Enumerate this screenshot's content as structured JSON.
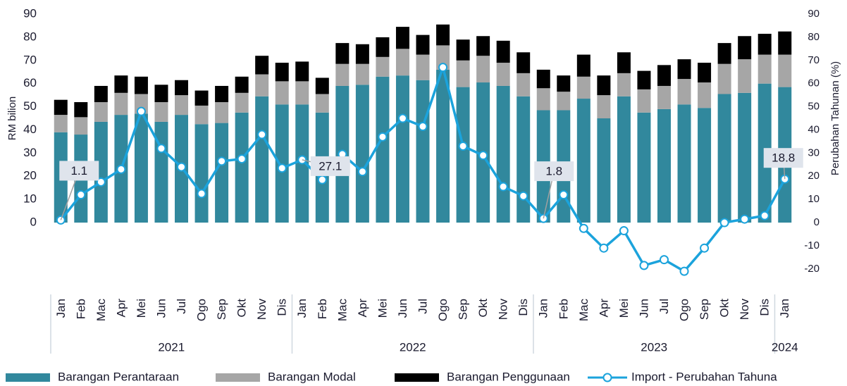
{
  "chart_data": {
    "type": "bar",
    "categories": [
      "Jan",
      "Feb",
      "Mac",
      "Apr",
      "Mei",
      "Jun",
      "Jul",
      "Ogo",
      "Sep",
      "Okt",
      "Nov",
      "Dis",
      "Jan",
      "Feb",
      "Mac",
      "Apr",
      "Mei",
      "Jun",
      "Jul",
      "Ogo",
      "Sep",
      "Okt",
      "Nov",
      "Dis",
      "Jan",
      "Feb",
      "Mac",
      "Apr",
      "Mei",
      "Jun",
      "Jul",
      "Ogo",
      "Sep",
      "Okt",
      "Nov",
      "Dis",
      "Jan"
    ],
    "groups": [
      {
        "label": "2021",
        "count": 12
      },
      {
        "label": "2022",
        "count": 12
      },
      {
        "label": "2023",
        "count": 12
      },
      {
        "label": "2024",
        "count": 1
      }
    ],
    "ylabel": "RM bilion",
    "y2label": "Perubahan Tahunan (%)",
    "ylim": [
      -30,
      90
    ],
    "yticks": [
      0,
      10,
      20,
      30,
      40,
      50,
      60,
      70,
      80,
      90
    ],
    "y2lim": [
      -30,
      90
    ],
    "y2ticks": [
      -20,
      -10,
      0,
      10,
      20,
      30,
      40,
      50,
      60,
      70,
      80,
      90
    ],
    "legend": "bottom",
    "series": [
      {
        "name": "Barangan Perantaraan",
        "color": "#31889d",
        "values": [
          39,
          38,
          43.5,
          46.5,
          47,
          43.5,
          46.5,
          42.5,
          43,
          47.5,
          54.5,
          51,
          51,
          47.5,
          59,
          59.5,
          63,
          63.5,
          61.5,
          66,
          58.5,
          60.5,
          59,
          54.5,
          48.5,
          48.5,
          53.5,
          45,
          54.5,
          47.5,
          49,
          51,
          49.5,
          55.5,
          56,
          60,
          58.5
        ]
      },
      {
        "name": "Barangan Modal",
        "color": "#a6a6a6",
        "values": [
          7.5,
          7.5,
          8.5,
          9.5,
          8.5,
          8.5,
          8.5,
          8,
          9,
          8.5,
          9.5,
          10,
          10,
          8,
          9.5,
          9,
          8.5,
          11.5,
          11,
          10.5,
          11.5,
          11.5,
          10,
          10,
          9.5,
          8,
          9.5,
          10,
          10,
          10,
          10,
          11,
          11,
          13,
          14.5,
          12.5,
          14
        ]
      },
      {
        "name": "Barangan Penggunaan",
        "color": "#000000",
        "values": [
          6.5,
          6.5,
          7,
          7.5,
          7.5,
          7.5,
          6.5,
          6.5,
          7,
          7,
          8,
          8,
          8.5,
          7,
          9,
          8.5,
          8.5,
          9.5,
          8.5,
          9,
          9,
          8.5,
          9.5,
          9,
          8,
          7,
          9.5,
          8.5,
          9,
          8,
          9,
          8.5,
          8.5,
          9,
          10,
          9,
          10
        ]
      },
      {
        "name": "Import - Perubahan Tahuna",
        "color": "#1ba3dc",
        "type": "line",
        "axis": "y2",
        "values": [
          1.1,
          12,
          17.5,
          23,
          48,
          32,
          24,
          12.5,
          26.5,
          27.5,
          38,
          23.5,
          27.1,
          18.5,
          29.5,
          22,
          37,
          45,
          41.5,
          67,
          33,
          29,
          15.5,
          11.5,
          1.8,
          12,
          -2.5,
          -11,
          -3.5,
          -18.5,
          -16,
          -21,
          -11,
          0,
          1.5,
          3,
          18.8
        ],
        "value_labels": [
          "1.1",
          null,
          null,
          null,
          null,
          null,
          null,
          null,
          null,
          null,
          null,
          null,
          "27.1",
          null,
          null,
          null,
          null,
          null,
          null,
          null,
          null,
          null,
          null,
          null,
          "1.8",
          null,
          null,
          null,
          null,
          null,
          null,
          null,
          null,
          null,
          null,
          null,
          "18.8"
        ]
      }
    ]
  }
}
